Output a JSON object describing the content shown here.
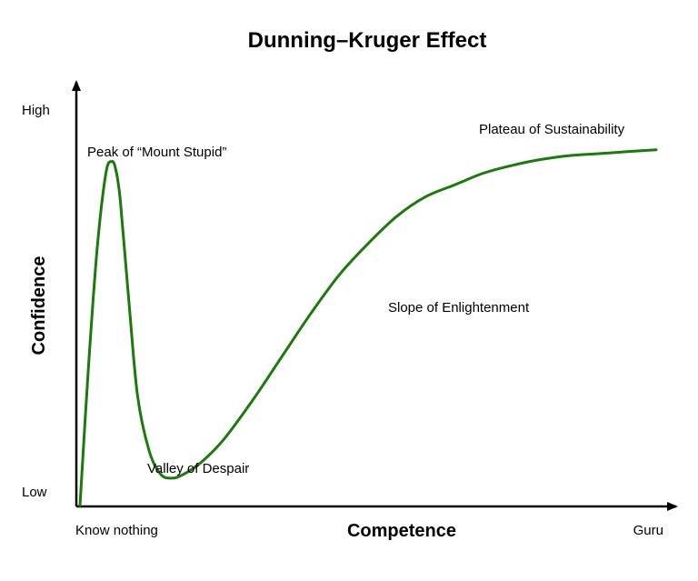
{
  "chart_data": {
    "type": "line",
    "title": "Dunning–Kruger Effect",
    "xlabel": "Competence",
    "ylabel": "Confidence",
    "xlim": [
      0,
      100
    ],
    "ylim": [
      0,
      100
    ],
    "x_tick_labels": [
      {
        "value": 0,
        "label": "Know nothing"
      },
      {
        "value": 100,
        "label": "Guru"
      }
    ],
    "y_tick_labels": [
      {
        "value": 0,
        "label": "Low"
      },
      {
        "value": 100,
        "label": "High"
      }
    ],
    "grid": false,
    "legend": "none",
    "line_color": "#1a7a0a",
    "series": [
      {
        "x": [
          0,
          1.5,
          3,
          4.5,
          5.5,
          6.2,
          7.0,
          8.5,
          10,
          12,
          14,
          16,
          18,
          21,
          25,
          30,
          35,
          40,
          45,
          50,
          55,
          60,
          65,
          70,
          75,
          80,
          85,
          90,
          95,
          100
        ],
        "y": [
          0,
          36,
          66,
          85,
          88,
          86,
          78,
          52,
          28,
          14,
          8,
          7,
          8,
          11,
          17,
          27,
          38,
          49,
          59,
          67,
          74,
          79,
          82,
          85,
          87,
          88.5,
          89.5,
          90,
          90.5,
          91
        ]
      }
    ],
    "annotations": [
      {
        "text": "Peak of “Mount Stupid”",
        "x": 5.5,
        "y": 88
      },
      {
        "text": "Valley of Despair",
        "x": 18,
        "y": 7
      },
      {
        "text": "Slope of Enlightenment",
        "x": 55,
        "y": 55
      },
      {
        "text": "Plateau of Sustainability",
        "x": 90,
        "y": 91
      }
    ]
  }
}
